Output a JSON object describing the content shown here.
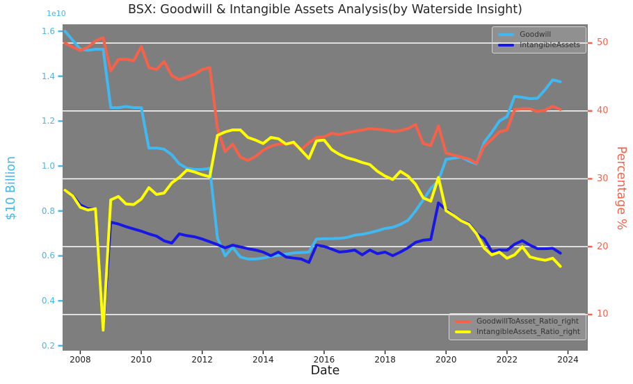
{
  "title": "BSX: Goodwill & Intangible Assets Analysis(by Waterside Insight)",
  "offset_text": "1e10",
  "colors": {
    "figure_bg": "#ffffff",
    "plot_bg": "#7e7e7e",
    "gridline": "#ffffff",
    "goodwill": "#41b8f0",
    "intangible_assets": "#1717e6",
    "goodwill_ratio": "#f66249",
    "intangible_ratio": "#ffff00",
    "x_tick_color": "#1a1a1a",
    "title_color": "#262626",
    "legend_text": "#333333"
  },
  "axes": {
    "x": {
      "label": "Date",
      "tick_labels": [
        "2008",
        "2010",
        "2012",
        "2014",
        "2016",
        "2018",
        "2020",
        "2022",
        "2024"
      ],
      "tick_values": [
        2008,
        2010,
        2012,
        2014,
        2016,
        2018,
        2020,
        2022,
        2024
      ],
      "lim": [
        2007.42,
        2024.65
      ]
    },
    "y_left": {
      "label": "$10 Billion",
      "tick_labels": [
        "0.2",
        "0.4",
        "0.6",
        "0.8",
        "1.0",
        "1.2",
        "1.4",
        "1.6"
      ],
      "tick_values": [
        0.2,
        0.4,
        0.6,
        0.8,
        1.0,
        1.2,
        1.4,
        1.6
      ],
      "lim": [
        0.178,
        1.631
      ],
      "color": "#41b8f0"
    },
    "y_right": {
      "label": "Percentage %",
      "tick_labels": [
        "10",
        "20",
        "30",
        "40",
        "50"
      ],
      "tick_values": [
        10,
        20,
        30,
        40,
        50
      ],
      "lim": [
        4.68,
        52.76
      ],
      "color": "#f66249"
    }
  },
  "legends": {
    "top": {
      "items": [
        {
          "label": "Goodwill",
          "color_key": "goodwill"
        },
        {
          "label": "IntangibleAssets",
          "color_key": "intangible_assets"
        }
      ]
    },
    "bottom": {
      "items": [
        {
          "label": "GoodwillToAsset_Ratio_right",
          "color_key": "goodwill_ratio"
        },
        {
          "label": "IntangibleAssets_Ratio_right",
          "color_key": "intangible_ratio"
        }
      ]
    }
  },
  "chart_data": {
    "type": "line",
    "x_start": 2007.5,
    "x_step": 0.25,
    "x_unit": "year (quarterly)",
    "grid": "horizontal white lines at right-axis ticks",
    "series": [
      {
        "name": "Goodwill",
        "axis": "left",
        "unit": "1e10 USD",
        "color_key": "goodwill",
        "values": [
          1.6,
          1.56,
          1.52,
          1.515,
          1.52,
          1.52,
          1.26,
          1.26,
          1.265,
          1.26,
          1.26,
          1.08,
          1.08,
          1.075,
          1.05,
          1.01,
          0.99,
          0.985,
          0.985,
          0.99,
          0.68,
          0.6,
          0.638,
          0.595,
          0.586,
          0.586,
          0.59,
          0.598,
          0.603,
          0.608,
          0.613,
          0.615,
          0.617,
          0.675,
          0.676,
          0.677,
          0.678,
          0.682,
          0.692,
          0.696,
          0.703,
          0.712,
          0.722,
          0.727,
          0.74,
          0.758,
          0.8,
          0.85,
          0.9,
          0.935,
          1.03,
          1.035,
          1.04,
          1.022,
          1.01,
          1.105,
          1.15,
          1.2,
          1.22,
          1.31,
          1.306,
          1.3,
          1.302,
          1.34,
          1.384,
          1.375
        ]
      },
      {
        "name": "IntangibleAssets",
        "axis": "left",
        "unit": "1e10 USD",
        "color_key": "intangible_assets",
        "values": [
          0.89,
          0.87,
          0.827,
          0.81,
          0.81,
          0.27,
          0.75,
          0.742,
          0.73,
          0.72,
          0.71,
          0.698,
          0.688,
          0.667,
          0.657,
          0.698,
          0.69,
          0.685,
          0.675,
          0.663,
          0.65,
          0.636,
          0.648,
          0.64,
          0.632,
          0.626,
          0.617,
          0.601,
          0.617,
          0.595,
          0.59,
          0.586,
          0.571,
          0.648,
          0.642,
          0.63,
          0.617,
          0.62,
          0.626,
          0.605,
          0.626,
          0.61,
          0.617,
          0.601,
          0.617,
          0.636,
          0.66,
          0.67,
          0.673,
          0.836,
          0.806,
          0.781,
          0.757,
          0.744,
          0.7,
          0.677,
          0.62,
          0.626,
          0.625,
          0.652,
          0.668,
          0.648,
          0.632,
          0.632,
          0.634,
          0.612
        ]
      },
      {
        "name": "GoodwillToAsset_Ratio_right",
        "axis": "right",
        "unit": "percent",
        "color_key": "goodwill_ratio",
        "values": [
          50.0,
          49.4,
          48.9,
          49.4,
          50.3,
          50.8,
          45.9,
          47.6,
          47.6,
          47.4,
          49.5,
          46.4,
          46.1,
          47.3,
          45.2,
          44.6,
          45.0,
          45.4,
          46.1,
          46.4,
          37.4,
          34.0,
          35.1,
          33.2,
          32.7,
          33.3,
          34.2,
          34.8,
          35.1,
          35.2,
          35.2,
          34.3,
          35.3,
          36.1,
          36.2,
          36.7,
          36.5,
          36.8,
          37.0,
          37.2,
          37.4,
          37.3,
          37.2,
          37.0,
          37.1,
          37.4,
          38.0,
          35.2,
          34.9,
          37.8,
          33.8,
          33.5,
          33.2,
          32.9,
          32.3,
          34.8,
          35.8,
          36.9,
          37.2,
          40.2,
          40.3,
          40.3,
          39.9,
          40.1,
          40.7,
          40.2
        ]
      },
      {
        "name": "IntangibleAssets_Ratio_right",
        "axis": "right",
        "unit": "percent",
        "color_key": "intangible_ratio",
        "values": [
          28.3,
          27.5,
          25.8,
          25.4,
          25.6,
          7.7,
          26.9,
          27.4,
          26.3,
          26.2,
          27.0,
          28.7,
          27.7,
          27.9,
          29.4,
          30.2,
          31.3,
          31.0,
          30.6,
          30.3,
          36.4,
          36.9,
          37.2,
          37.2,
          36.1,
          35.7,
          35.2,
          36.1,
          35.9,
          35.1,
          35.4,
          34.2,
          33.0,
          35.6,
          35.7,
          34.3,
          33.6,
          33.1,
          32.8,
          32.4,
          32.1,
          31.1,
          30.4,
          29.9,
          31.1,
          30.4,
          29.2,
          27.2,
          26.7,
          30.2,
          25.3,
          24.6,
          23.8,
          23.3,
          21.9,
          19.8,
          18.8,
          19.2,
          18.3,
          18.8,
          20.0,
          18.5,
          18.2,
          18.0,
          18.3,
          17.1
        ]
      }
    ]
  }
}
